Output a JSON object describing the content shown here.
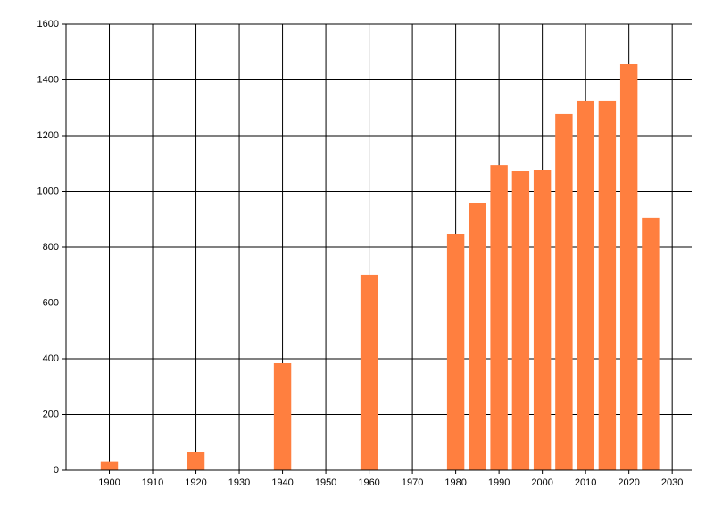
{
  "chart_data": {
    "type": "bar",
    "x": [
      1900,
      1920,
      1940,
      1960,
      1980,
      1985,
      1990,
      1995,
      2000,
      2005,
      2010,
      2015,
      2020,
      2025
    ],
    "values": [
      30,
      64,
      384,
      701,
      848,
      960,
      1094,
      1072,
      1078,
      1277,
      1325,
      1325,
      1456,
      906
    ],
    "color": "#ff7f3f",
    "xlim": [
      1890,
      2034.5
    ],
    "xticks": [
      1900,
      1910,
      1920,
      1930,
      1940,
      1950,
      1960,
      1970,
      1980,
      1990,
      2000,
      2010,
      2020,
      2030
    ],
    "ylim": [
      0,
      1600
    ],
    "yticks": [
      0,
      200,
      400,
      600,
      800,
      1000,
      1200,
      1400,
      1600
    ],
    "grid": true
  }
}
